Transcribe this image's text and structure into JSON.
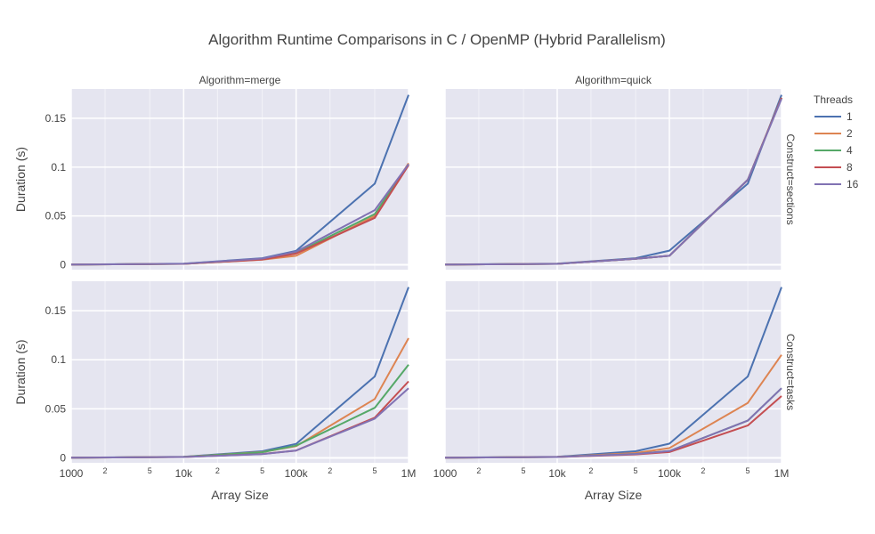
{
  "chart_data": {
    "type": "line",
    "title": "Algorithm Runtime Comparisons in C / OpenMP (Hybrid Parallelism)",
    "xlabel": "Array Size",
    "ylabel": "Duration (s)",
    "x_scale": "log",
    "xlim": [
      1000,
      1000000
    ],
    "ylim": [
      -0.005,
      0.18
    ],
    "grid": true,
    "x_major_ticks": [
      {
        "value": 1000,
        "label": "1000"
      },
      {
        "value": 10000,
        "label": "10k"
      },
      {
        "value": 100000,
        "label": "100k"
      },
      {
        "value": 1000000,
        "label": "1M"
      }
    ],
    "x_minor_ticks": [
      {
        "value": 2000,
        "label": "2"
      },
      {
        "value": 5000,
        "label": "5"
      },
      {
        "value": 20000,
        "label": "2"
      },
      {
        "value": 50000,
        "label": "5"
      },
      {
        "value": 200000,
        "label": "2"
      },
      {
        "value": 500000,
        "label": "5"
      }
    ],
    "y_ticks": [
      {
        "value": 0,
        "label": "0"
      },
      {
        "value": 0.05,
        "label": "0.05"
      },
      {
        "value": 0.1,
        "label": "0.1"
      },
      {
        "value": 0.15,
        "label": "0.15"
      }
    ],
    "x": [
      1000,
      10000,
      50000,
      100000,
      500000,
      1000000
    ],
    "legend": {
      "title": "Threads",
      "placement": "right",
      "entries": [
        {
          "name": "1",
          "color": "#4c72b0"
        },
        {
          "name": "2",
          "color": "#dd8452"
        },
        {
          "name": "4",
          "color": "#55a868"
        },
        {
          "name": "8",
          "color": "#c44e52"
        },
        {
          "name": "16",
          "color": "#8172b3"
        }
      ]
    },
    "panels": [
      {
        "column_label": "Algorithm=merge",
        "row_label": "",
        "series": [
          {
            "name": "1",
            "values": [
              0.0003,
              0.0012,
              0.0068,
              0.0143,
              0.083,
              0.174
            ]
          },
          {
            "name": "2",
            "values": [
              0.0002,
              0.0009,
              0.0052,
              0.0092,
              0.05,
              0.104
            ]
          },
          {
            "name": "4",
            "values": [
              0.0002,
              0.0009,
              0.0056,
              0.012,
              0.052,
              0.103
            ]
          },
          {
            "name": "8",
            "values": [
              0.0002,
              0.0009,
              0.0054,
              0.0115,
              0.048,
              0.102
            ]
          },
          {
            "name": "16",
            "values": [
              0.0002,
              0.001,
              0.0064,
              0.0135,
              0.056,
              0.103
            ]
          }
        ]
      },
      {
        "column_label": "Algorithm=quick",
        "row_label": "Construct=sections",
        "series": [
          {
            "name": "1",
            "values": [
              0.0003,
              0.0012,
              0.0068,
              0.0145,
              0.083,
              0.174
            ]
          },
          {
            "name": "2",
            "values": [
              0.0002,
              0.0009,
              0.0062,
              0.0092,
              0.087,
              0.171
            ]
          },
          {
            "name": "4",
            "values": [
              0.0002,
              0.0009,
              0.0062,
              0.0092,
              0.087,
              0.171
            ]
          },
          {
            "name": "8",
            "values": [
              0.0002,
              0.0009,
              0.0062,
              0.0092,
              0.087,
              0.171
            ]
          },
          {
            "name": "16",
            "values": [
              0.0002,
              0.0009,
              0.0062,
              0.0092,
              0.087,
              0.17
            ]
          }
        ]
      },
      {
        "column_label": "",
        "row_label": "",
        "series": [
          {
            "name": "1",
            "values": [
              0.0003,
              0.0012,
              0.0068,
              0.0143,
              0.083,
              0.174
            ]
          },
          {
            "name": "2",
            "values": [
              0.0002,
              0.001,
              0.006,
              0.012,
              0.06,
              0.122
            ]
          },
          {
            "name": "4",
            "values": [
              0.0002,
              0.001,
              0.0058,
              0.0125,
              0.051,
              0.095
            ]
          },
          {
            "name": "8",
            "values": [
              0.0002,
              0.0009,
              0.004,
              0.0075,
              0.041,
              0.078
            ]
          },
          {
            "name": "16",
            "values": [
              0.0002,
              0.0009,
              0.0038,
              0.0075,
              0.04,
              0.071
            ]
          }
        ]
      },
      {
        "column_label": "",
        "row_label": "Construct=tasks",
        "series": [
          {
            "name": "1",
            "values": [
              0.0003,
              0.0012,
              0.0068,
              0.0145,
              0.083,
              0.174
            ]
          },
          {
            "name": "2",
            "values": [
              0.0002,
              0.001,
              0.005,
              0.01,
              0.056,
              0.105
            ]
          },
          {
            "name": "4",
            "values": [
              0.0002,
              0.0009,
              0.004,
              0.007,
              0.038,
              0.071
            ]
          },
          {
            "name": "8",
            "values": [
              0.0002,
              0.0009,
              0.0035,
              0.006,
              0.033,
              0.063
            ]
          },
          {
            "name": "16",
            "values": [
              0.0002,
              0.0009,
              0.004,
              0.007,
              0.038,
              0.071
            ]
          }
        ]
      }
    ]
  }
}
